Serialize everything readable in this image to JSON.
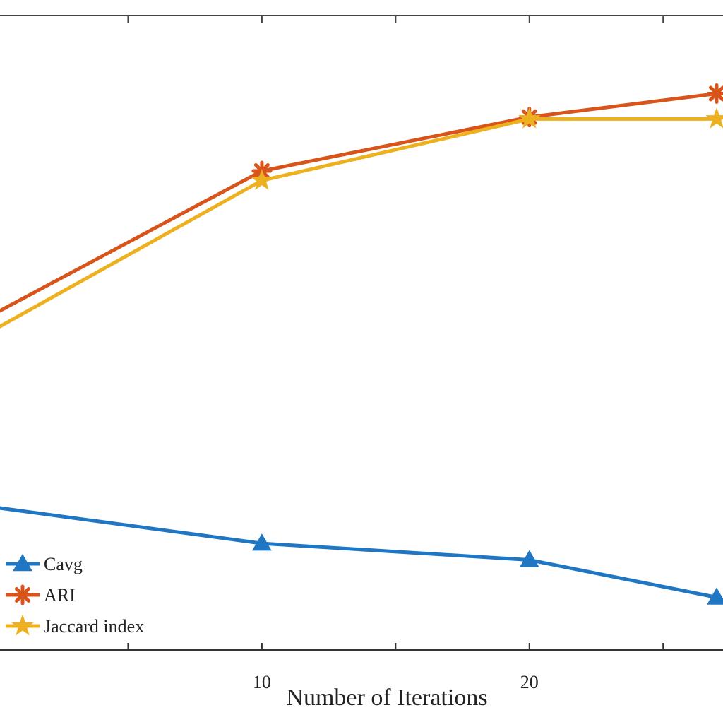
{
  "chart_data": {
    "type": "line",
    "title": "",
    "xlabel": "Number of Iterations",
    "ylabel": "",
    "x": [
      0,
      10,
      20,
      27
    ],
    "xlim": [
      0,
      27
    ],
    "xticks": [
      10,
      20
    ],
    "minor_xticks": [
      5,
      15,
      25
    ],
    "ylim": [
      0,
      1
    ],
    "grid": false,
    "legend_position": "lower-left",
    "series": [
      {
        "name": "Cavg",
        "color": "#1f77c4",
        "marker": "triangle",
        "values": [
          0.225,
          0.168,
          0.142,
          0.083
        ]
      },
      {
        "name": "ARI",
        "color": "#d9541a",
        "marker": "asterisk",
        "values": [
          0.53,
          0.755,
          0.84,
          0.877
        ]
      },
      {
        "name": "Jaccard index",
        "color": "#edb120",
        "marker": "star",
        "values": [
          0.505,
          0.74,
          0.837,
          0.837
        ]
      }
    ]
  }
}
